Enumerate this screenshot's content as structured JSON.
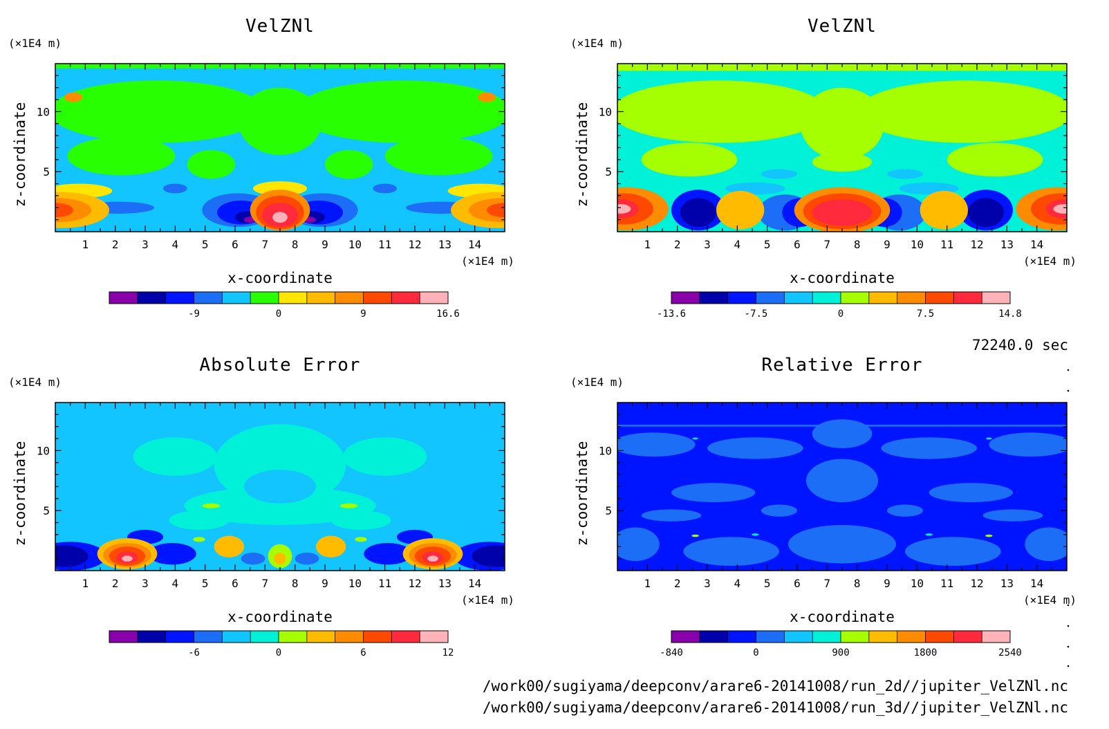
{
  "colors": {
    "deep_purple": "#8800aa",
    "navy": "#0000aa",
    "blue": "#0015ff",
    "mid_blue": "#1c6ef6",
    "light_blue": "#12c5ff",
    "cyan": "#00f0d8",
    "green": "#28ff00",
    "lime": "#a6ff00",
    "yellow": "#ffe600",
    "gold": "#ffbb00",
    "orange": "#ff8c00",
    "red_orange": "#ff4800",
    "red": "#ff2a3c",
    "pink": "#ffb3b8"
  },
  "chart_data": [
    {
      "type": "heatmap",
      "title": "VelZNl",
      "xlabel": "x-coordinate",
      "ylabel": "z-coordinate",
      "x_unit": "(×1E4 m)",
      "y_unit": "(×1E4 m)",
      "xlim": [
        0,
        15
      ],
      "ylim": [
        0,
        14
      ],
      "x_ticks": [
        1,
        2,
        3,
        4,
        5,
        6,
        7,
        8,
        9,
        10,
        11,
        12,
        13,
        14
      ],
      "y_ticks": [
        5,
        10
      ],
      "colorbar": {
        "tick_labels": [
          "-9",
          "0",
          "9",
          "16.6"
        ],
        "palette": [
          "deep_purple",
          "navy",
          "blue",
          "mid_blue",
          "light_blue",
          "green",
          "yellow",
          "gold",
          "orange",
          "red_orange",
          "red",
          "pink"
        ]
      }
    },
    {
      "type": "heatmap",
      "title": "VelZNl",
      "xlabel": "x-coordinate",
      "ylabel": "z-coordinate",
      "x_unit": "(×1E4 m)",
      "y_unit": "(×1E4 m)",
      "xlim": [
        0,
        15
      ],
      "ylim": [
        0,
        14
      ],
      "x_ticks": [
        1,
        2,
        3,
        4,
        5,
        6,
        7,
        8,
        9,
        10,
        11,
        12,
        13,
        14
      ],
      "y_ticks": [
        5,
        10
      ],
      "colorbar": {
        "tick_labels": [
          "-13.6",
          "-7.5",
          "0",
          "7.5",
          "14.8"
        ],
        "palette": [
          "deep_purple",
          "navy",
          "blue",
          "mid_blue",
          "light_blue",
          "cyan",
          "lime",
          "gold",
          "orange",
          "red_orange",
          "red",
          "pink"
        ]
      }
    },
    {
      "type": "heatmap",
      "title": "Absolute Error",
      "xlabel": "x-coordinate",
      "ylabel": "z-coordinate",
      "x_unit": "(×1E4 m)",
      "y_unit": "(×1E4 m)",
      "xlim": [
        0,
        15
      ],
      "ylim": [
        0,
        14
      ],
      "x_ticks": [
        1,
        2,
        3,
        4,
        5,
        6,
        7,
        8,
        9,
        10,
        11,
        12,
        13,
        14
      ],
      "y_ticks": [
        5,
        10
      ],
      "colorbar": {
        "tick_labels": [
          "-6",
          "0",
          "6",
          "12"
        ],
        "palette": [
          "deep_purple",
          "navy",
          "blue",
          "mid_blue",
          "light_blue",
          "cyan",
          "lime",
          "gold",
          "orange",
          "red_orange",
          "red",
          "pink"
        ]
      }
    },
    {
      "type": "heatmap",
      "title": "Relative Error",
      "xlabel": "x-coordinate",
      "ylabel": "z-coordinate",
      "x_unit": "(×1E4 m)",
      "y_unit": "(×1E4 m)",
      "xlim": [
        0,
        15
      ],
      "ylim": [
        0,
        14
      ],
      "x_ticks": [
        1,
        2,
        3,
        4,
        5,
        6,
        7,
        8,
        9,
        10,
        11,
        12,
        13,
        14
      ],
      "y_ticks": [
        5,
        10
      ],
      "colorbar": {
        "tick_labels": [
          "-840",
          "0",
          "900",
          "1800",
          "2540"
        ],
        "palette": [
          "deep_purple",
          "navy",
          "blue",
          "mid_blue",
          "light_blue",
          "cyan",
          "lime",
          "gold",
          "orange",
          "red_orange",
          "red",
          "pink"
        ]
      }
    }
  ],
  "time_label": "72240.0 sec",
  "file_paths": [
    "/work00/sugiyama/deepconv/arare6-20141008/run_2d//jupiter_VelZNl.nc",
    "/work00/sugiyama/deepconv/arare6-20141008/run_3d//jupiter_VelZNl.nc"
  ]
}
